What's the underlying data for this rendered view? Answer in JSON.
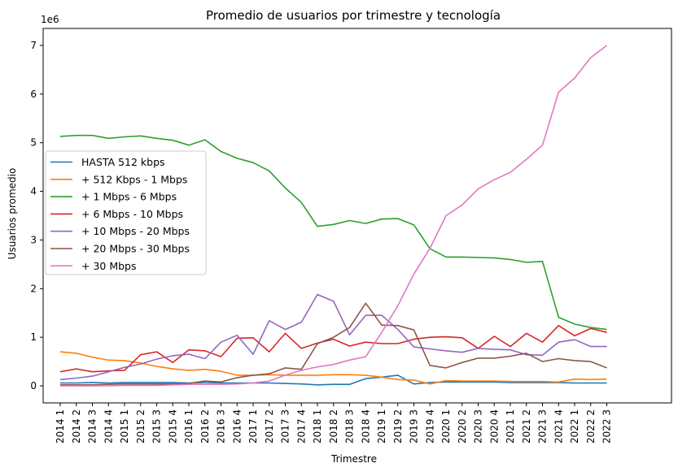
{
  "chart_data": {
    "type": "line",
    "title": "Promedio de usuarios por trimestre y tecnología",
    "xlabel": "Trimestre",
    "ylabel": "Usuarios promedio",
    "y_offset_label": "1e6",
    "ylim": [
      -0.35,
      7.35
    ],
    "yticks": [
      0,
      1,
      2,
      3,
      4,
      5,
      6,
      7
    ],
    "grid": false,
    "legend_position": "center-left",
    "categories": [
      "2014 1",
      "2014 2",
      "2014 3",
      "2014 4",
      "2015 1",
      "2015 2",
      "2015 3",
      "2015 4",
      "2016 1",
      "2016 2",
      "2016 3",
      "2016 4",
      "2017 1",
      "2017 2",
      "2017 3",
      "2017 4",
      "2018 1",
      "2018 2",
      "2018 3",
      "2018 4",
      "2019 1",
      "2019 2",
      "2019 3",
      "2019 4",
      "2020 1",
      "2020 2",
      "2020 3",
      "2020 4",
      "2021 1",
      "2021 2",
      "2021 3",
      "2021 4",
      "2022 1",
      "2022 2",
      "2022 3"
    ],
    "series": [
      {
        "name": "HASTA 512 kbps",
        "color": "#1f77b4",
        "values": [
          0.06,
          0.06,
          0.07,
          0.06,
          0.07,
          0.07,
          0.07,
          0.07,
          0.06,
          0.07,
          0.06,
          0.06,
          0.06,
          0.06,
          0.05,
          0.04,
          0.02,
          0.03,
          0.03,
          0.15,
          0.18,
          0.22,
          0.04,
          0.07,
          0.08,
          0.08,
          0.08,
          0.08,
          0.07,
          0.07,
          0.07,
          0.07,
          0.06,
          0.06,
          0.06
        ]
      },
      {
        "name": "+ 512 Kbps - 1 Mbps",
        "color": "#ff7f0e",
        "values": [
          0.7,
          0.67,
          0.59,
          0.53,
          0.52,
          0.47,
          0.4,
          0.35,
          0.32,
          0.34,
          0.3,
          0.22,
          0.22,
          0.23,
          0.22,
          0.22,
          0.22,
          0.23,
          0.23,
          0.22,
          0.18,
          0.13,
          0.12,
          0.04,
          0.11,
          0.1,
          0.1,
          0.1,
          0.09,
          0.09,
          0.09,
          0.08,
          0.14,
          0.13,
          0.14
        ]
      },
      {
        "name": "+ 1 Mbps - 6 Mbps",
        "color": "#2ca02c",
        "values": [
          5.13,
          5.15,
          5.15,
          5.09,
          5.12,
          5.14,
          5.09,
          5.05,
          4.95,
          5.06,
          4.82,
          4.68,
          4.59,
          4.42,
          4.07,
          3.77,
          3.28,
          3.32,
          3.4,
          3.34,
          3.43,
          3.44,
          3.31,
          2.82,
          2.65,
          2.65,
          2.64,
          2.63,
          2.6,
          2.54,
          2.56,
          1.41,
          1.27,
          1.2,
          1.16
        ]
      },
      {
        "name": "+ 6 Mbps - 10 Mbps",
        "color": "#d62728",
        "values": [
          0.29,
          0.35,
          0.29,
          0.31,
          0.32,
          0.64,
          0.7,
          0.48,
          0.74,
          0.72,
          0.6,
          0.98,
          0.99,
          0.7,
          1.08,
          0.77,
          0.88,
          0.96,
          0.82,
          0.9,
          0.87,
          0.87,
          0.96,
          1.0,
          1.01,
          0.99,
          0.77,
          1.02,
          0.81,
          1.08,
          0.9,
          1.24,
          1.03,
          1.18,
          1.1
        ]
      },
      {
        "name": "+ 10 Mbps - 20 Mbps",
        "color": "#9467bd",
        "values": [
          0.13,
          0.16,
          0.2,
          0.29,
          0.38,
          0.45,
          0.55,
          0.62,
          0.65,
          0.56,
          0.9,
          1.04,
          0.65,
          1.34,
          1.16,
          1.31,
          1.88,
          1.74,
          1.05,
          1.45,
          1.45,
          1.16,
          0.8,
          0.76,
          0.72,
          0.69,
          0.77,
          0.75,
          0.74,
          0.64,
          0.63,
          0.9,
          0.95,
          0.81,
          0.81
        ]
      },
      {
        "name": "+ 20 Mbps - 30 Mbps",
        "color": "#8c564b",
        "values": [
          0.02,
          0.02,
          0.02,
          0.03,
          0.04,
          0.04,
          0.04,
          0.04,
          0.05,
          0.1,
          0.08,
          0.17,
          0.22,
          0.25,
          0.37,
          0.34,
          0.87,
          1.0,
          1.2,
          1.7,
          1.25,
          1.24,
          1.15,
          0.42,
          0.37,
          0.48,
          0.57,
          0.57,
          0.61,
          0.67,
          0.5,
          0.56,
          0.52,
          0.5,
          0.37
        ]
      },
      {
        "name": "+ 30 Mbps",
        "color": "#e377c2",
        "values": [
          0.0,
          0.0,
          0.0,
          0.0,
          0.01,
          0.01,
          0.01,
          0.02,
          0.03,
          0.03,
          0.03,
          0.04,
          0.06,
          0.1,
          0.22,
          0.32,
          0.39,
          0.44,
          0.53,
          0.6,
          1.1,
          1.65,
          2.3,
          2.83,
          3.5,
          3.72,
          4.05,
          4.24,
          4.39,
          4.66,
          4.95,
          6.04,
          6.33,
          6.75,
          7.0
        ]
      }
    ]
  }
}
